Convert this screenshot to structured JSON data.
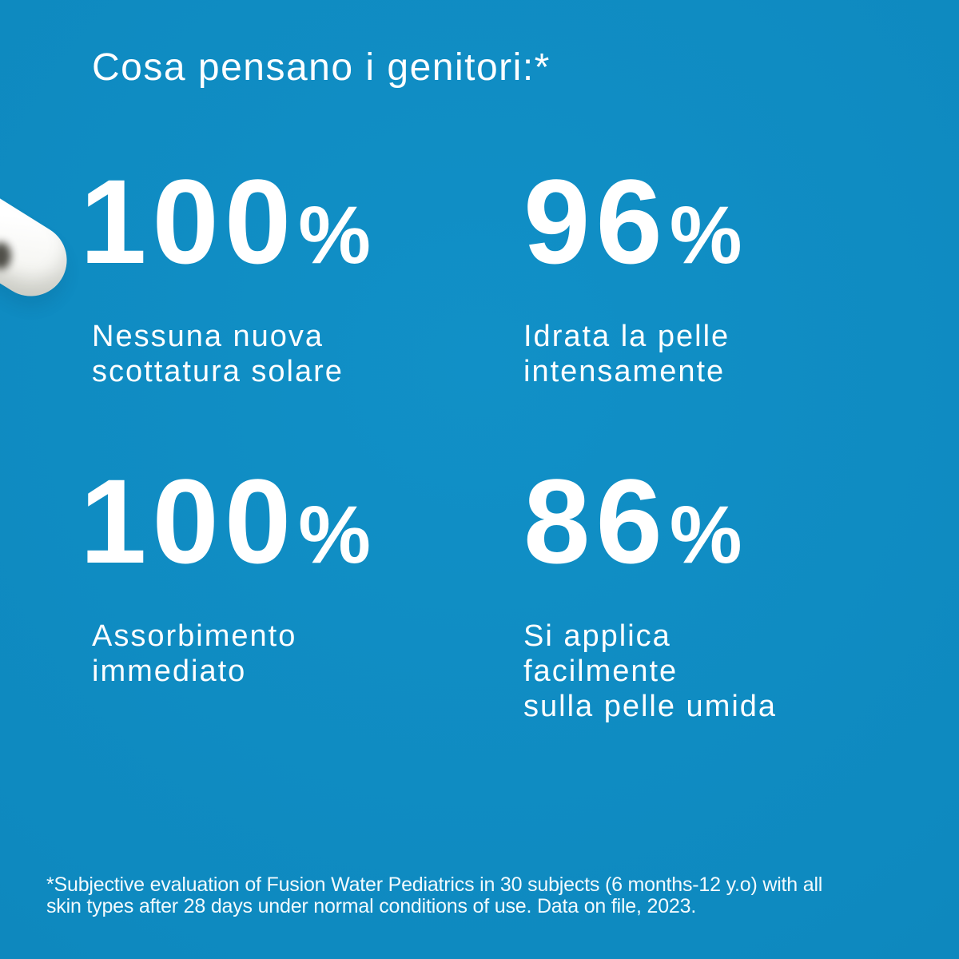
{
  "theme": {
    "background_color": "#0e89bf",
    "text_color": "#ffffff",
    "cream_color": "#ffffff"
  },
  "header": {
    "title": "Cosa pensano i genitori:*"
  },
  "stats": [
    {
      "value": "100",
      "unit": "%",
      "caption_lines": [
        "Nessuna nuova",
        "scottatura solare"
      ]
    },
    {
      "value": "96",
      "unit": "%",
      "caption_lines": [
        "Idrata la pelle",
        "intensamente"
      ]
    },
    {
      "value": "100",
      "unit": "%",
      "caption_lines": [
        "Assorbimento",
        "immediato"
      ]
    },
    {
      "value": "86",
      "unit": "%",
      "caption_lines": [
        "Si applica",
        "facilmente",
        "sulla pelle umida"
      ]
    }
  ],
  "footnote": {
    "lines": [
      "*Subjective evaluation of Fusion Water Pediatrics in 30 subjects (6 months-12 y.o) with all",
      "skin types after 28 days under normal conditions of use. Data on file, 2023."
    ]
  },
  "decor": {
    "cream_dollop_label": "cream dollop"
  }
}
